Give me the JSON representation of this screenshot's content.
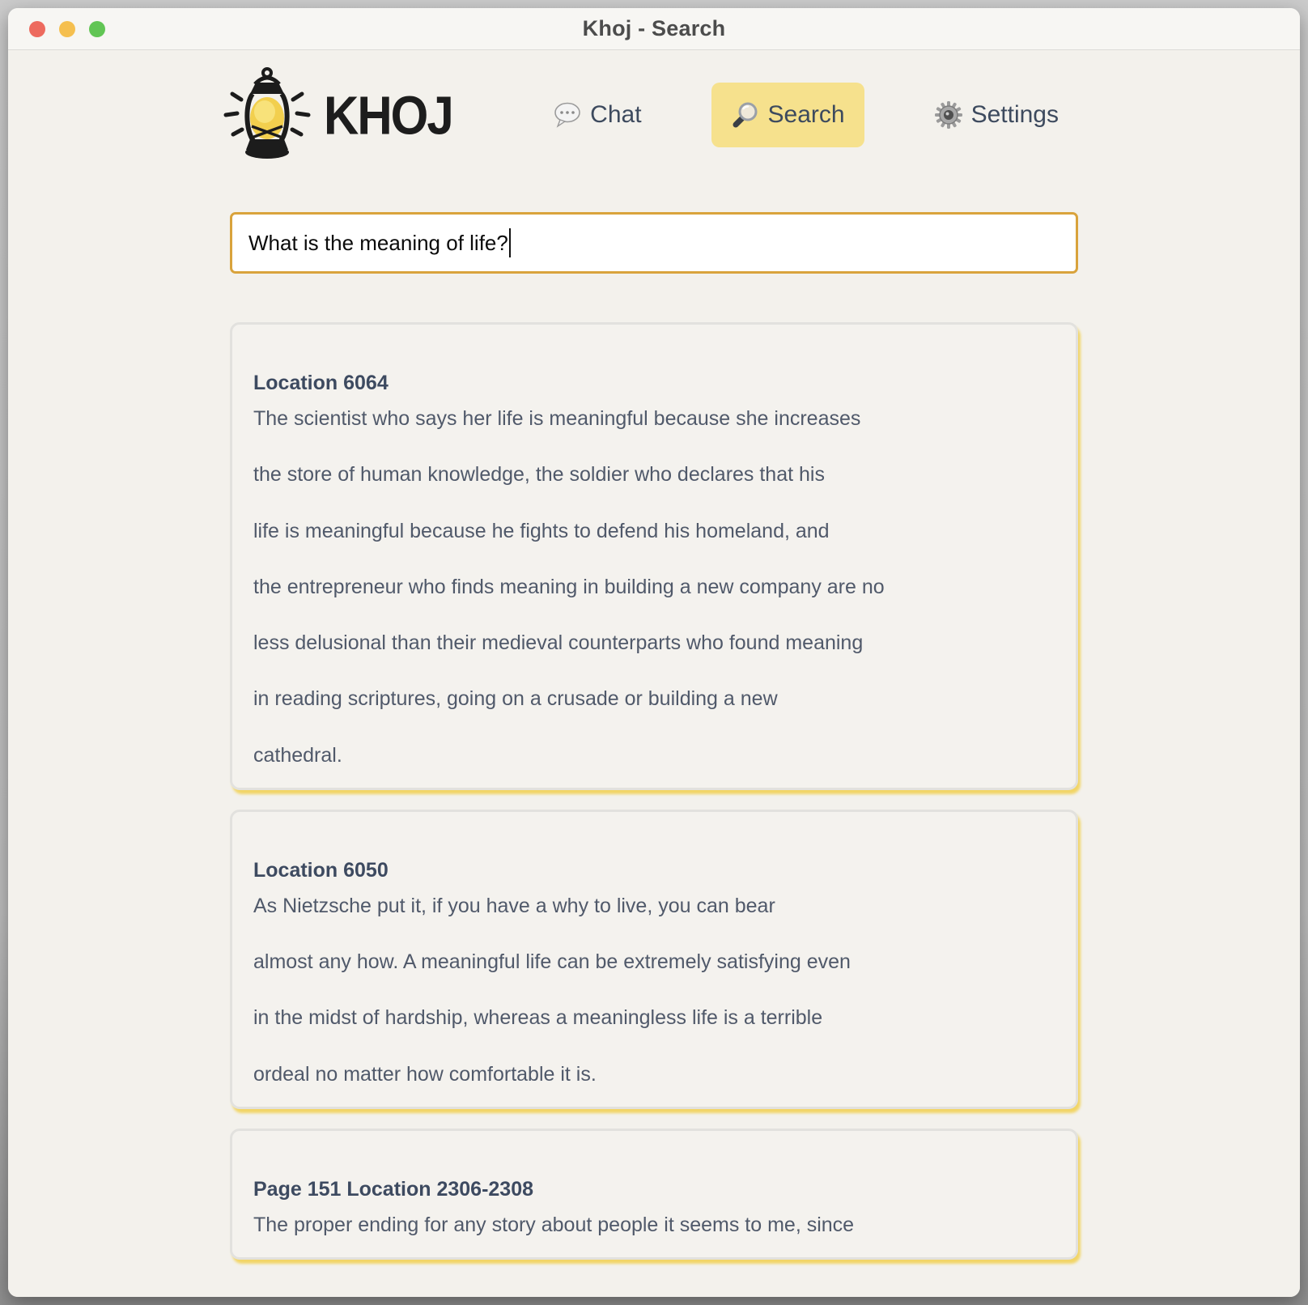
{
  "window": {
    "title": "Khoj - Search"
  },
  "titlebar": {
    "buttons": [
      {
        "name": "close"
      },
      {
        "name": "minimize"
      },
      {
        "name": "zoom"
      }
    ]
  },
  "brand": {
    "name": "KHOJ",
    "logo_icon": "lantern-icon"
  },
  "nav": {
    "chat": {
      "label": "Chat",
      "icon": "speech-bubble-icon"
    },
    "search": {
      "label": "Search",
      "icon": "magnifying-glass-icon",
      "active": true
    },
    "settings": {
      "label": "Settings",
      "icon": "gear-icon"
    }
  },
  "search": {
    "value": "What is the meaning of life?"
  },
  "results": [
    {
      "title": "Location 6064",
      "lines": [
        "The scientist who says her life is meaningful because she increases",
        "the store of human knowledge, the soldier who declares that his",
        "life is meaningful because he fights to defend his homeland, and",
        "the entrepreneur who finds meaning in building a new company are no",
        "less delusional than their medieval counterparts who found meaning",
        "in reading scriptures, going on a crusade or building a new",
        "cathedral."
      ]
    },
    {
      "title": "Location 6050",
      "lines": [
        "As Nietzsche put it, if you have a why to live, you can bear",
        "almost any how. A meaningful life can be extremely satisfying even",
        "in the midst of hardship, whereas a meaningless life is a terrible",
        "ordeal no matter how comfortable it is."
      ]
    },
    {
      "title": "Page 151 Location 2306-2308",
      "lines": [
        "The proper ending for any story about people it seems to me, since"
      ]
    }
  ],
  "colors": {
    "nav_active_bg": "#f6e18d",
    "input_border": "#d9a33c",
    "card_glow": "#f2d566",
    "traffic_red": "#ed6a5e",
    "traffic_yellow": "#f5bf4f",
    "traffic_green": "#61c554"
  }
}
